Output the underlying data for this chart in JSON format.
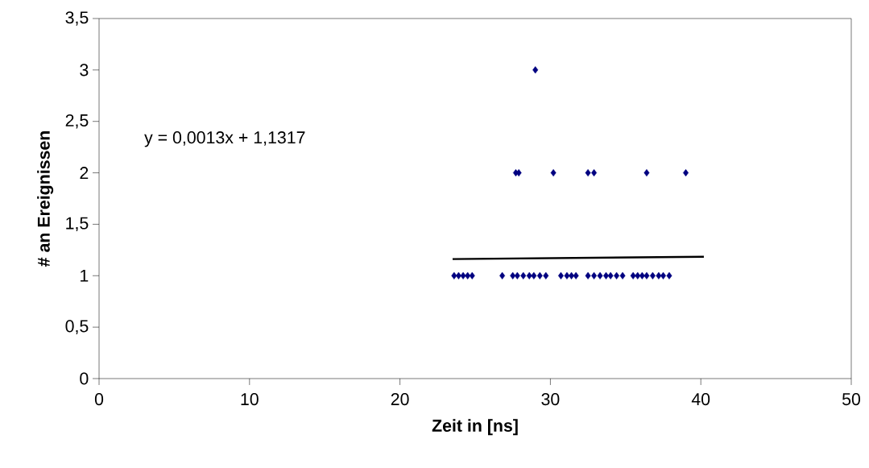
{
  "chart_data": {
    "type": "scatter",
    "xlabel": "Zeit in [ns]",
    "ylabel": "# an Ereignissen",
    "annotations": [
      "y = 0,0013x + 1,1317"
    ],
    "xlim": [
      0,
      50
    ],
    "xticks": [
      0,
      10,
      20,
      30,
      40,
      50
    ],
    "ylim": [
      0,
      3.5
    ],
    "yticks": [
      0,
      {
        "value": 0.5,
        "label": "0,5"
      },
      1,
      {
        "value": 1.5,
        "label": "1,5"
      },
      2,
      {
        "value": 2.5,
        "label": "2,5"
      },
      3,
      {
        "value": 3.5,
        "label": "3,5"
      }
    ],
    "grid": false,
    "marker": "diamond",
    "series": [
      {
        "color": "#000080",
        "x": [
          23.6,
          23.9,
          24.2,
          24.5,
          24.8,
          26.8,
          27.5,
          27.8,
          28.2,
          28.6,
          28.9,
          29.3,
          29.7,
          30.7,
          31.1,
          31.4,
          31.7,
          32.5,
          32.9,
          33.3,
          33.7,
          34.0,
          34.4,
          34.8,
          35.5,
          35.8,
          36.1,
          36.4,
          36.8,
          37.2,
          37.5,
          37.9,
          27.7,
          27.9,
          30.2,
          32.5,
          32.9,
          36.4,
          39.0,
          29.0
        ],
        "values": [
          1,
          1,
          1,
          1,
          1,
          1,
          1,
          1,
          1,
          1,
          1,
          1,
          1,
          1,
          1,
          1,
          1,
          1,
          1,
          1,
          1,
          1,
          1,
          1,
          1,
          1,
          1,
          1,
          1,
          1,
          1,
          1,
          2,
          2,
          2,
          2,
          2,
          2,
          2,
          3
        ]
      },
      {
        "type": "line",
        "color": "#000000",
        "marker": "none",
        "line_style": "solid",
        "x": [
          23.5,
          40.2
        ],
        "values": [
          1.162,
          1.184
        ]
      }
    ]
  }
}
